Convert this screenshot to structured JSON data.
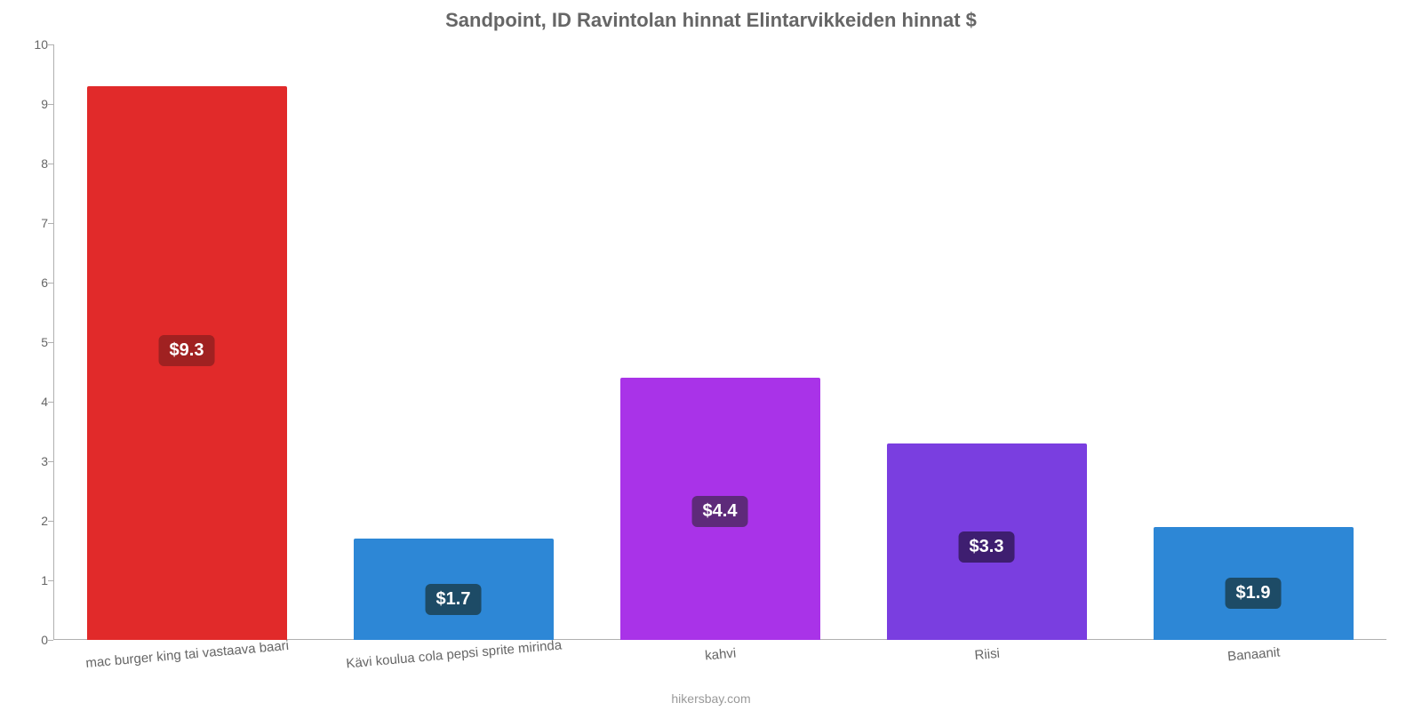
{
  "chart": {
    "type": "bar",
    "title": "Sandpoint, ID Ravintolan hinnat Elintarvikkeiden hinnat $",
    "title_fontsize": 22,
    "title_color": "#666666",
    "source": "hikersbay.com",
    "source_color": "#999999",
    "background_color": "#ffffff",
    "axis_color": "#b0b0b0",
    "tick_label_color": "#666666",
    "tick_fontsize": 14,
    "x_label_fontsize": 15,
    "x_label_rotation_deg": -5,
    "ylim": [
      0,
      10
    ],
    "ytick_step": 1,
    "bar_width_ratio": 0.75,
    "value_label_fontsize": 20,
    "value_badge_radius": 6,
    "categories": [
      "mac burger king tai vastaava baari",
      "Kävi koulua cola pepsi sprite mirinda",
      "kahvi",
      "Riisi",
      "Banaanit"
    ],
    "values": [
      9.3,
      1.7,
      4.4,
      3.3,
      1.9
    ],
    "value_labels": [
      "$9.3",
      "$1.7",
      "$4.4",
      "$3.3",
      "$1.9"
    ],
    "bar_colors": [
      "#e12a2a",
      "#2d87d6",
      "#a933e8",
      "#7a3ee0",
      "#2d87d6"
    ],
    "badge_colors": [
      "#a02121",
      "#1d4b66",
      "#5e2a7a",
      "#3e1e70",
      "#1d4b66"
    ]
  }
}
